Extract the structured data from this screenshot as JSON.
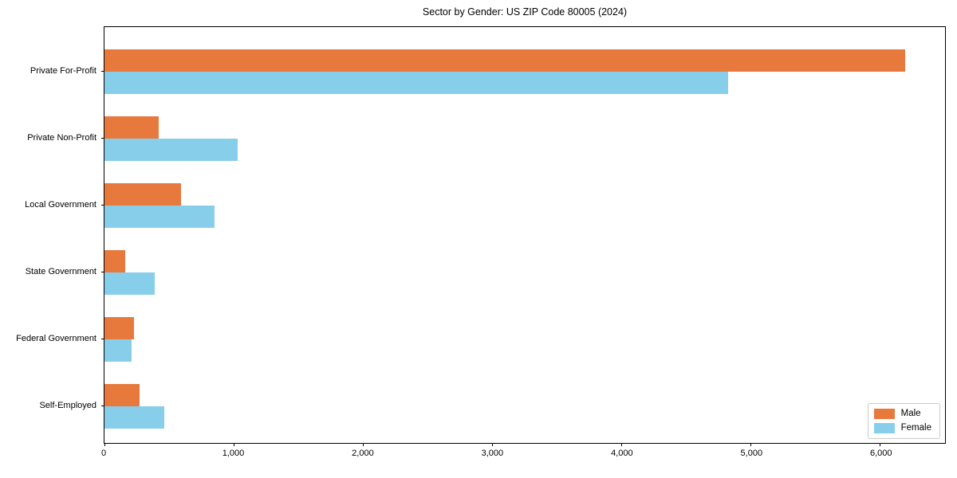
{
  "title": "Sector by Gender: US ZIP Code 80005 (2024)",
  "colors": {
    "male": "#e8793d",
    "female": "#87ceeb",
    "axis": "#000000",
    "legend_border": "#cccccc",
    "background": "#ffffff"
  },
  "legend": {
    "items": [
      {
        "label": "Male"
      },
      {
        "label": "Female"
      }
    ],
    "position": "lower right"
  },
  "chart_data": {
    "type": "bar",
    "orientation": "horizontal",
    "title": "Sector by Gender: US ZIP Code 80005 (2024)",
    "categories": [
      "Private For-Profit",
      "Private Non-Profit",
      "Local Government",
      "State Government",
      "Federal Government",
      "Self-Employed"
    ],
    "series": [
      {
        "name": "Male",
        "color": "#e8793d",
        "values": [
          6190,
          420,
          590,
          160,
          230,
          270
        ]
      },
      {
        "name": "Female",
        "color": "#87ceeb",
        "values": [
          4820,
          1030,
          850,
          390,
          210,
          460
        ]
      }
    ],
    "xlabel": "",
    "ylabel": "",
    "xlim": [
      0,
      6500
    ],
    "xticks": [
      0,
      1000,
      2000,
      3000,
      4000,
      5000,
      6000
    ],
    "xtick_labels": [
      "0",
      "1,000",
      "2,000",
      "3,000",
      "4,000",
      "5,000",
      "6,000"
    ],
    "grid": false,
    "legend_position": "lower right"
  }
}
